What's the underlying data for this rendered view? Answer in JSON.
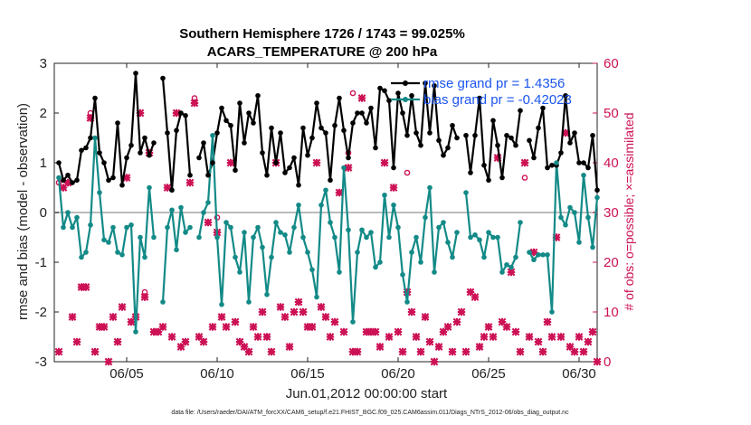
{
  "chart_data": {
    "type": "line",
    "title": "Southern Hemisphere 1726 / 1743 = 99.025%",
    "subtitle": "ACARS_TEMPERATURE @ 200 hPa",
    "xlabel": "Jun.01,2012 00:00:00 start",
    "ylabel_left": "rmse and bias (model - observation)",
    "ylabel_right": "# of obs: o=possible; ×=assimilated",
    "footnote": "data file: /Users/raeder/DAI/ATM_forcXX/CAM6_setup/f.e21.FHIST_BGC.f09_025.CAM6assim.011/Diags_NTrS_2012-06/obs_diag_output.nc",
    "xlim": [
      1,
      31
    ],
    "ylim_left": [
      -3,
      3
    ],
    "ylim_right": [
      0,
      60
    ],
    "x_ticks": [
      5,
      10,
      15,
      20,
      25,
      30
    ],
    "x_tick_labels": [
      "06/05",
      "06/10",
      "06/15",
      "06/20",
      "06/25",
      "06/30"
    ],
    "y_ticks_left": [
      -3,
      -2,
      -1,
      0,
      1,
      2,
      3
    ],
    "y_tick_labels_left": [
      "-3",
      "-2",
      "-1",
      "0",
      "1",
      "2",
      "3"
    ],
    "y_ticks_right": [
      0,
      10,
      20,
      30,
      40,
      50,
      60
    ],
    "y_tick_labels_right": [
      "0",
      "10",
      "20",
      "30",
      "40",
      "50",
      "60"
    ],
    "legend": [
      "rmse grand pr = 1.4356",
      "bias grand pr = -0.42023"
    ],
    "legend_position": "top-right",
    "colors": {
      "rmse": "#000000",
      "bias": "#138a87",
      "obs": "#cc1155",
      "zero_line": "#bbbbbb"
    },
    "series": [
      {
        "name": "rmse grand pr = 1.4356",
        "x": [
          1.25,
          1.5,
          1.75,
          2.0,
          2.25,
          2.5,
          2.75,
          3.0,
          3.25,
          3.5,
          3.75,
          4.0,
          4.25,
          4.5,
          4.75,
          5.0,
          5.25,
          5.5,
          5.75,
          6.0,
          6.25,
          6.5,
          6.75,
          7.0,
          7.25,
          7.5,
          7.75,
          8.0,
          8.25,
          8.5,
          8.75,
          9.0,
          9.25,
          9.5,
          9.75,
          10.0,
          10.25,
          10.5,
          10.75,
          11.0,
          11.25,
          11.5,
          11.75,
          12.0,
          12.25,
          12.5,
          12.75,
          13.0,
          13.25,
          13.5,
          13.75,
          14.0,
          14.25,
          14.5,
          14.75,
          15.0,
          15.25,
          15.5,
          15.75,
          16.0,
          16.25,
          16.5,
          16.75,
          17.0,
          17.25,
          17.5,
          17.75,
          18.0,
          18.25,
          18.5,
          18.75,
          19.0,
          19.25,
          19.5,
          19.75,
          20.0,
          20.25,
          20.5,
          20.75,
          21.0,
          21.25,
          21.5,
          21.75,
          22.0,
          22.25,
          22.5,
          22.75,
          23.0,
          23.25,
          23.5,
          23.75,
          24.0,
          24.25,
          24.5,
          24.75,
          25.0,
          25.25,
          25.5,
          25.75,
          26.0,
          26.25,
          26.5,
          26.75,
          27.0,
          27.25,
          27.5,
          27.75,
          28.0,
          28.25,
          28.5,
          28.75,
          29.0,
          29.25,
          29.5,
          29.75,
          30.0,
          30.25,
          30.5,
          30.75,
          31.0
        ],
        "values": [
          1.0,
          0.65,
          0.75,
          0.6,
          0.65,
          1.25,
          1.3,
          1.5,
          2.3,
          1.2,
          1.0,
          0.65,
          0.7,
          1.8,
          0.55,
          1.1,
          1.35,
          2.8,
          1.2,
          1.5,
          1.15,
          1.4,
          null,
          2.7,
          1.6,
          0.45,
          1.65,
          2.0,
          1.95,
          0.75,
          null,
          1.1,
          1.4,
          0.75,
          1.0,
          1.6,
          2.1,
          1.85,
          1.75,
          0.85,
          2.2,
          1.4,
          2.0,
          1.8,
          2.35,
          1.2,
          0.75,
          1.7,
          1.0,
          1.6,
          0.8,
          0.9,
          1.1,
          0.55,
          1.7,
          1.15,
          1.5,
          2.2,
          1.7,
          1.6,
          0.65,
          1.75,
          2.3,
          1.65,
          1.1,
          1.8,
          2.0,
          2.0,
          1.8,
          2.1,
          1.3,
          2.5,
          2.45,
          2.25,
          0.9,
          2.4,
          2.0,
          1.55,
          2.35,
          1.6,
          1.35,
          2.6,
          1.6,
          2.55,
          1.45,
          1.15,
          1.3,
          1.75,
          1.5,
          null,
          1.55,
          0.8,
          1.55,
          2.3,
          0.95,
          0.65,
          1.85,
          1.35,
          0.7,
          1.55,
          1.5,
          1.35,
          2.05,
          null,
          1.45,
          1.1,
          1.7,
          2.1,
          0.9,
          0.95,
          0.95,
          1.2,
          2.35,
          1.4,
          1.6,
          1.0,
          1.0,
          0.9,
          1.55,
          0.45
        ]
      },
      {
        "name": "bias grand pr = -0.42023",
        "x": [
          1.25,
          1.5,
          1.75,
          2.0,
          2.25,
          2.5,
          2.75,
          3.0,
          3.25,
          3.5,
          3.75,
          4.0,
          4.25,
          4.5,
          4.75,
          5.0,
          5.25,
          5.5,
          5.75,
          6.0,
          6.25,
          6.5,
          6.75,
          7.0,
          7.25,
          7.5,
          7.75,
          8.0,
          8.25,
          8.5,
          8.75,
          9.0,
          9.25,
          9.5,
          9.75,
          10.0,
          10.25,
          10.5,
          10.75,
          11.0,
          11.25,
          11.5,
          11.75,
          12.0,
          12.25,
          12.5,
          12.75,
          13.0,
          13.25,
          13.5,
          13.75,
          14.0,
          14.25,
          14.5,
          14.75,
          15.0,
          15.25,
          15.5,
          15.75,
          16.0,
          16.25,
          16.5,
          16.75,
          17.0,
          17.25,
          17.5,
          17.75,
          18.0,
          18.25,
          18.5,
          18.75,
          19.0,
          19.25,
          19.5,
          19.75,
          20.0,
          20.25,
          20.5,
          20.75,
          21.0,
          21.25,
          21.5,
          21.75,
          22.0,
          22.25,
          22.5,
          22.75,
          23.0,
          23.25,
          23.5,
          23.75,
          24.0,
          24.25,
          24.5,
          24.75,
          25.0,
          25.25,
          25.5,
          25.75,
          26.0,
          26.25,
          26.5,
          26.75,
          27.0,
          27.25,
          27.5,
          27.75,
          28.0,
          28.25,
          28.5,
          28.75,
          29.0,
          29.25,
          29.5,
          29.75,
          30.0,
          30.25,
          30.5,
          30.75,
          31.0
        ],
        "values": [
          0.7,
          -0.3,
          0.0,
          -0.3,
          -0.1,
          -0.9,
          -0.8,
          -0.25,
          1.5,
          0.4,
          -0.55,
          -0.6,
          -0.3,
          -0.8,
          -0.85,
          -0.3,
          -0.25,
          -2.4,
          -0.5,
          -0.9,
          0.5,
          -0.5,
          null,
          -1.8,
          -0.3,
          0.05,
          -0.75,
          0.1,
          -0.4,
          -0.3,
          null,
          -0.5,
          0.0,
          0.2,
          1.55,
          -0.5,
          -1.85,
          -0.2,
          -0.3,
          -0.9,
          -1.2,
          -0.4,
          -1.8,
          -0.5,
          -0.3,
          -0.7,
          -1.65,
          -0.9,
          -0.2,
          -0.4,
          -0.45,
          -0.8,
          -0.3,
          0.15,
          -0.5,
          -0.8,
          -1.15,
          -1.7,
          0.15,
          0.45,
          -0.2,
          -0.5,
          -1.2,
          0.9,
          -0.35,
          -2.2,
          -0.8,
          -0.35,
          -0.5,
          -0.4,
          -1.1,
          -1.0,
          0.35,
          -0.5,
          0.15,
          -0.3,
          -1.25,
          -1.8,
          -0.8,
          -0.5,
          -1.0,
          -0.1,
          0.5,
          -1.2,
          -0.3,
          -0.2,
          -0.6,
          -0.9,
          -0.4,
          null,
          0.4,
          -0.5,
          -0.45,
          -0.55,
          -0.9,
          -0.4,
          -0.5,
          -0.5,
          -1.2,
          -1.05,
          -1.1,
          -0.9,
          -0.2,
          null,
          -0.8,
          -0.95,
          -0.85,
          -0.85,
          -0.85,
          -2.0,
          1.0,
          -0.1,
          -0.25,
          0.1,
          0.0,
          -0.6,
          0.75,
          -0.1,
          -0.7,
          0.3
        ]
      }
    ],
    "obs_possible": {
      "x": [
        1.25,
        3.0,
        6.0,
        8.75,
        10.0,
        12.75,
        17.25,
        17.5,
        20.5,
        27.0
      ],
      "values": [
        36,
        50,
        14,
        53,
        29,
        5,
        42,
        54,
        38,
        37
      ]
    },
    "obs_assimilated": {
      "x": [
        1.25,
        1.5,
        1.75,
        2.0,
        2.25,
        2.5,
        2.75,
        3.0,
        3.25,
        3.5,
        3.75,
        4.0,
        4.25,
        4.5,
        4.75,
        5.0,
        5.25,
        5.5,
        5.75,
        6.0,
        6.25,
        6.5,
        6.75,
        7.0,
        7.25,
        7.5,
        7.75,
        8.0,
        8.25,
        8.5,
        8.75,
        9.0,
        9.25,
        9.5,
        9.75,
        10.0,
        10.25,
        10.5,
        10.75,
        11.0,
        11.25,
        11.5,
        11.75,
        12.0,
        12.25,
        12.5,
        12.75,
        13.0,
        13.25,
        13.5,
        13.75,
        14.0,
        14.25,
        14.5,
        14.75,
        15.0,
        15.25,
        15.5,
        15.75,
        16.0,
        16.25,
        16.5,
        16.75,
        17.0,
        17.25,
        17.5,
        17.75,
        18.0,
        18.25,
        18.5,
        18.75,
        19.0,
        19.25,
        19.5,
        19.75,
        20.0,
        20.25,
        20.5,
        20.75,
        21.0,
        21.25,
        21.5,
        21.75,
        22.0,
        22.25,
        22.5,
        22.75,
        23.0,
        23.25,
        23.5,
        23.75,
        24.0,
        24.25,
        24.5,
        24.75,
        25.0,
        25.25,
        25.5,
        25.75,
        26.0,
        26.25,
        26.5,
        26.75,
        27.0,
        27.25,
        27.5,
        27.75,
        28.0,
        28.25,
        28.5,
        28.75,
        29.0,
        29.25,
        29.5,
        29.75,
        30.0,
        30.25,
        30.5,
        30.75,
        31.0
      ],
      "values": [
        2,
        35,
        36,
        9,
        4,
        15,
        15,
        49,
        2,
        7,
        7,
        0,
        9,
        4,
        11,
        37,
        8,
        9,
        50,
        13,
        42,
        6,
        6,
        7,
        35,
        5,
        50,
        3,
        4,
        36,
        52,
        5,
        4,
        28,
        7,
        26,
        9,
        7,
        40,
        8,
        4,
        3,
        2,
        7,
        5,
        10,
        5,
        2,
        40,
        11,
        9,
        3,
        10,
        12,
        10,
        7,
        7,
        40,
        11,
        9,
        5,
        8,
        34,
        6,
        39,
        2,
        2,
        53,
        6,
        6,
        6,
        3,
        40,
        5,
        35,
        6,
        2,
        14,
        10,
        5,
        2,
        9,
        4,
        0,
        3,
        6,
        7,
        2,
        8,
        10,
        2,
        14,
        13,
        3,
        5,
        7,
        5,
        41,
        8,
        7,
        18,
        6,
        2,
        40,
        5,
        22,
        4,
        2,
        8,
        5,
        25,
        5,
        46,
        3,
        2,
        5,
        2,
        4,
        6,
        0
      ]
    }
  }
}
